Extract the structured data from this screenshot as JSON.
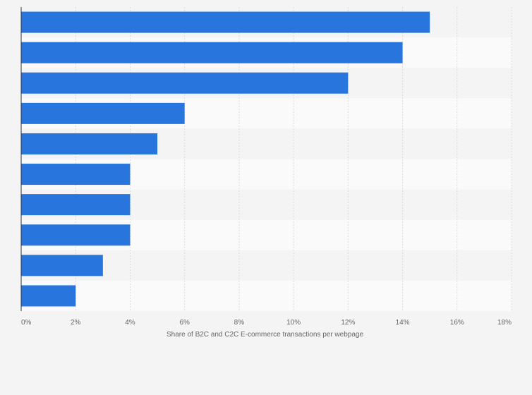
{
  "chart_data": {
    "type": "bar",
    "orientation": "horizontal",
    "title": "",
    "xlabel": "Share of B2C and C2C E-commerce transactions per webpage",
    "ylabel": "",
    "categories": [
      "",
      "",
      "",
      "",
      "",
      "",
      "",
      "",
      "",
      ""
    ],
    "values": [
      15,
      14,
      12,
      6,
      5,
      4,
      4,
      4,
      3,
      2
    ],
    "unit": "%",
    "xlim": [
      0,
      18
    ],
    "x_ticks": [
      0,
      2,
      4,
      6,
      8,
      10,
      12,
      14,
      16,
      18
    ],
    "x_tick_labels": [
      "0%",
      "2%",
      "4%",
      "6%",
      "8%",
      "10%",
      "12%",
      "14%",
      "16%",
      "18%"
    ],
    "grid": true,
    "legend": "none",
    "colors": {
      "bar": "#2876dd",
      "band_light": "#fafafa",
      "band_dark": "#f4f4f4",
      "grid": "#dcdcdc",
      "axis": "#333333",
      "text": "#666666"
    }
  }
}
